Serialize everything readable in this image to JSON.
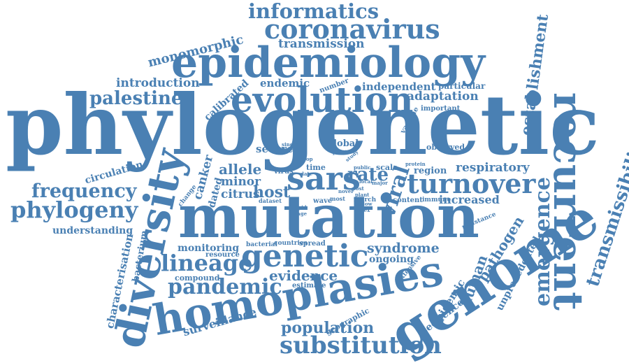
{
  "color": "#4a80b3",
  "words": [
    "phylogenetic",
    "mutation",
    "epidemiology",
    "genome",
    "homoplasies",
    "diversity",
    "evolution",
    "recurrent",
    "sars",
    "genetic",
    "coronavirus",
    "informatics",
    "substitution",
    "turnover",
    "phylogeny",
    "frequency",
    "lineage",
    "pandemic",
    "palestine",
    "transmissibility",
    "emergence",
    "establishment",
    "monomorphic",
    "transmission",
    "introduction",
    "calibrated",
    "endemic",
    "number",
    "independent",
    "particular",
    "adaptation",
    "vaccine",
    "important",
    "respiratory",
    "region",
    "rate",
    "viral",
    "increased",
    "pathogen",
    "human",
    "unprecedented",
    "epidemic",
    "sequence",
    "syndrome",
    "ongoing",
    "extensive",
    "evidence",
    "estimate",
    "population",
    "geographic",
    "surveillance",
    "compound",
    "characterisation",
    "bacterium",
    "monitoring",
    "resource",
    "bacterial",
    "countries",
    "spread",
    "understanding",
    "circulation",
    "change",
    "canker",
    "dated",
    "allele",
    "minor",
    "citrus",
    "host",
    "severe",
    "global",
    "single",
    "point",
    "crop",
    "virus",
    "time",
    "date",
    "novel",
    "most",
    "wave",
    "dataset",
    "rapid",
    "stage",
    "public",
    "scale",
    "protein",
    "content",
    "immune",
    "resistance",
    "index",
    "march",
    "local",
    "major",
    "post",
    "allow",
    "plant",
    "study",
    "observed"
  ]
}
